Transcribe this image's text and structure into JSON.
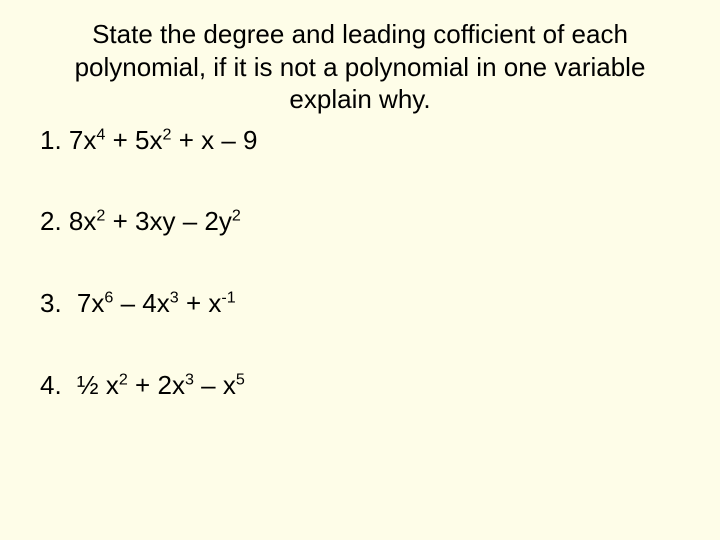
{
  "background_color": "#fefde8",
  "text_color": "#000000",
  "font_family": "Arial",
  "instruction_fontsize": 26,
  "problem_fontsize": 26,
  "instruction": "State the degree and leading cofficient of each polynomial, if it is not a polynomial in one variable explain why.",
  "problems": [
    {
      "number": "1.",
      "terms": [
        {
          "coef": "7",
          "var": "x",
          "exp": "4"
        },
        {
          "op": "+",
          "coef": "5",
          "var": "x",
          "exp": "2"
        },
        {
          "op": "+",
          "coef": "",
          "var": "x",
          "exp": ""
        },
        {
          "op": "–",
          "coef": "9",
          "var": "",
          "exp": ""
        }
      ],
      "indent": false
    },
    {
      "number": "2.",
      "terms": [
        {
          "coef": "8",
          "var": "x",
          "exp": "2"
        },
        {
          "op": "+",
          "coef": "3",
          "var": "xy",
          "exp": ""
        },
        {
          "op": "–",
          "coef": "2",
          "var": "y",
          "exp": "2"
        }
      ],
      "indent": false
    },
    {
      "number": "3.",
      "terms": [
        {
          "coef": "7",
          "var": "x",
          "exp": "6"
        },
        {
          "op": "–",
          "coef": "4",
          "var": "x",
          "exp": "3"
        },
        {
          "op": "+",
          "coef": "",
          "var": "x",
          "exp": "-1"
        }
      ],
      "indent": true
    },
    {
      "number": "4.",
      "terms": [
        {
          "coef": "½ ",
          "var": "x",
          "exp": "2"
        },
        {
          "op": "+",
          "coef": "2",
          "var": "x",
          "exp": "3"
        },
        {
          "op": "–",
          "coef": "",
          "var": "x",
          "exp": "5"
        }
      ],
      "indent": true
    }
  ]
}
